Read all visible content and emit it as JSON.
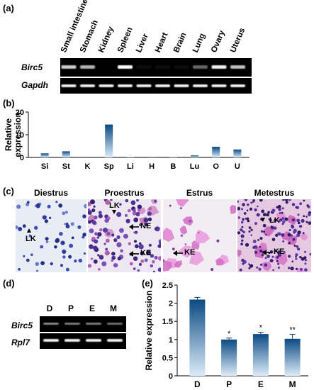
{
  "panel_a": {
    "label": "(a)",
    "tissues": [
      "Small intestine",
      "Stomach",
      "Kidney",
      "Spleen",
      "Liver",
      "Heart",
      "Brain",
      "Lung",
      "Ovary",
      "Uterus"
    ],
    "genes": [
      "Birc5",
      "Gapdh"
    ],
    "birc5_intensity": [
      0.8,
      0.7,
      0.0,
      1.0,
      0.05,
      0.05,
      0.05,
      0.4,
      0.95,
      0.75
    ],
    "gapdh_intensity": [
      0.95,
      0.95,
      0.95,
      0.95,
      0.95,
      0.95,
      0.95,
      0.95,
      0.95,
      0.95
    ]
  },
  "panel_b": {
    "label": "(b)",
    "chart_data": {
      "type": "bar",
      "categories": [
        "Si",
        "St",
        "K",
        "Sp",
        "Li",
        "H",
        "B",
        "Lu",
        "O",
        "U"
      ],
      "values": [
        1.8,
        2.7,
        0.05,
        14.5,
        0.15,
        0.1,
        0.15,
        0.9,
        4.7,
        3.5
      ],
      "ylabel": "Relative expression",
      "ylim": [
        0,
        20
      ],
      "yticks": [
        0,
        10,
        20
      ]
    }
  },
  "panel_c": {
    "label": "(c)",
    "stages": [
      "Diestrus",
      "Proestrus",
      "Estrus",
      "Metestrus"
    ],
    "annotations": {
      "diestrus": [
        "LK"
      ],
      "proestrus": [
        "LK",
        "NE",
        "KE"
      ],
      "estrus": [
        "KE"
      ],
      "metestrus": [
        "LK",
        "KE"
      ]
    }
  },
  "panel_d": {
    "label": "(d)",
    "lanes": [
      "D",
      "P",
      "E",
      "M"
    ],
    "genes": [
      "Birc5",
      "Rpl7"
    ]
  },
  "panel_e": {
    "label": "(e)",
    "chart_data": {
      "type": "bar",
      "categories": [
        "D",
        "P",
        "E",
        "M"
      ],
      "values": [
        2.1,
        1.0,
        1.15,
        1.02
      ],
      "errors": [
        0.06,
        0.04,
        0.05,
        0.12
      ],
      "significance": [
        "",
        "*",
        "*",
        "**"
      ],
      "ylabel": "Relative expression",
      "ylim": [
        0,
        2.5
      ],
      "yticks": [
        "0",
        "0.5",
        "1",
        "1.5",
        "2",
        "2.5"
      ]
    }
  }
}
